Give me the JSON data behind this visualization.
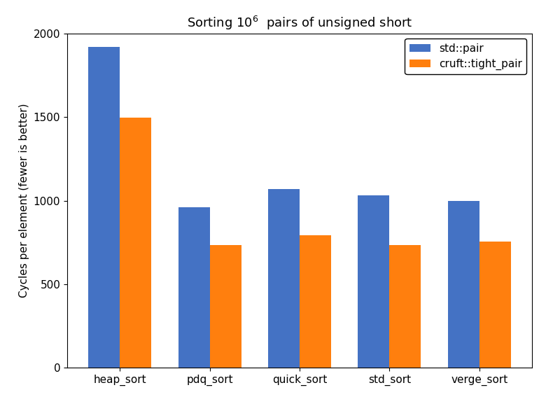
{
  "title_text": "Sorting $10^6$  pairs of unsigned short",
  "categories": [
    "heap_sort",
    "pdq_sort",
    "quick_sort",
    "std_sort",
    "verge_sort"
  ],
  "std_pair_values": [
    1920,
    960,
    1070,
    1030,
    1000
  ],
  "tight_pair_values": [
    1495,
    735,
    795,
    735,
    755
  ],
  "bar_color_std": "#4472C4",
  "bar_color_tight": "#FF7F0E",
  "ylabel": "Cycles per element (fewer is better)",
  "ylim": [
    0,
    2000
  ],
  "yticks": [
    0,
    500,
    1000,
    1500,
    2000
  ],
  "legend_labels": [
    "std::pair",
    "cruft::tight_pair"
  ],
  "bar_width": 0.35,
  "figure_width": 8.0,
  "figure_height": 5.97,
  "background_color": "#ffffff"
}
